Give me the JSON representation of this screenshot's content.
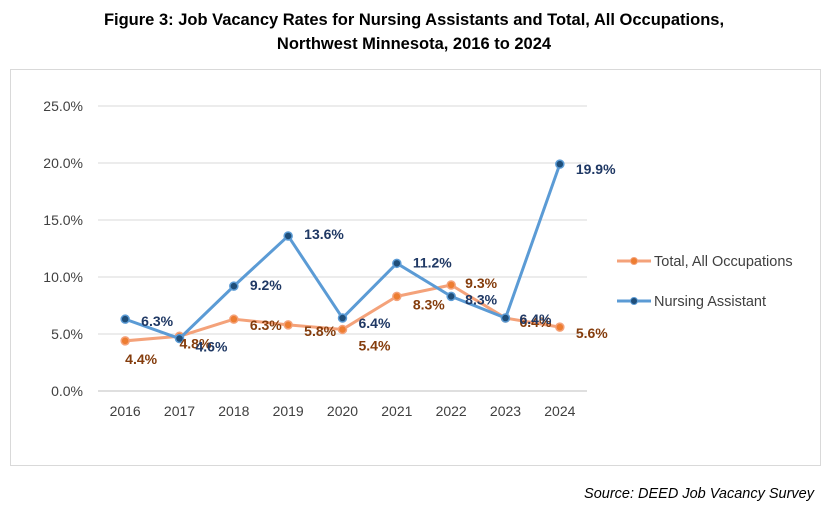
{
  "figure": {
    "title_line1": "Figure 3:  Job Vacancy Rates for Nursing Assistants and Total, All Occupations,",
    "title_line2": "Northwest Minnesota, 2016 to 2024",
    "source": "Source:  DEED Job Vacancy Survey"
  },
  "chart_data": {
    "type": "line",
    "title": "Job Vacancy Rates for Nursing Assistants and Total, All Occupations, Northwest Minnesota, 2016 to 2024",
    "xlabel": "",
    "ylabel": "",
    "categories": [
      "2016",
      "2017",
      "2018",
      "2019",
      "2020",
      "2021",
      "2022",
      "2023",
      "2024"
    ],
    "ylim": [
      0,
      25
    ],
    "yticks": [
      0,
      5,
      10,
      15,
      20,
      25
    ],
    "ytick_labels": [
      "0.0%",
      "5.0%",
      "10.0%",
      "15.0%",
      "20.0%",
      "25.0%"
    ],
    "grid": true,
    "legend_position": "right",
    "series": [
      {
        "name": "Total, All Occupations",
        "color": "#F4A27A",
        "marker_color": "#ED7D31",
        "label_color": "#843C0C",
        "values": [
          4.4,
          4.8,
          6.3,
          5.8,
          5.4,
          8.3,
          9.3,
          6.4,
          5.6
        ],
        "labels": [
          "4.4%",
          "4.8%",
          "6.3%",
          "5.8%",
          "5.4%",
          "8.3%",
          "9.3%",
          "6.4%",
          "5.6%"
        ]
      },
      {
        "name": "Nursing Assistant",
        "color": "#5B9BD5",
        "marker_color": "#1F4E79",
        "label_color": "#1F3864",
        "values": [
          6.3,
          4.6,
          9.2,
          13.6,
          6.4,
          11.2,
          8.3,
          6.4,
          19.9
        ],
        "labels": [
          "6.3%",
          "4.6%",
          "9.2%",
          "13.6%",
          "6.4%",
          "11.2%",
          "8.3%",
          "6.4%",
          "19.9%"
        ]
      }
    ]
  }
}
